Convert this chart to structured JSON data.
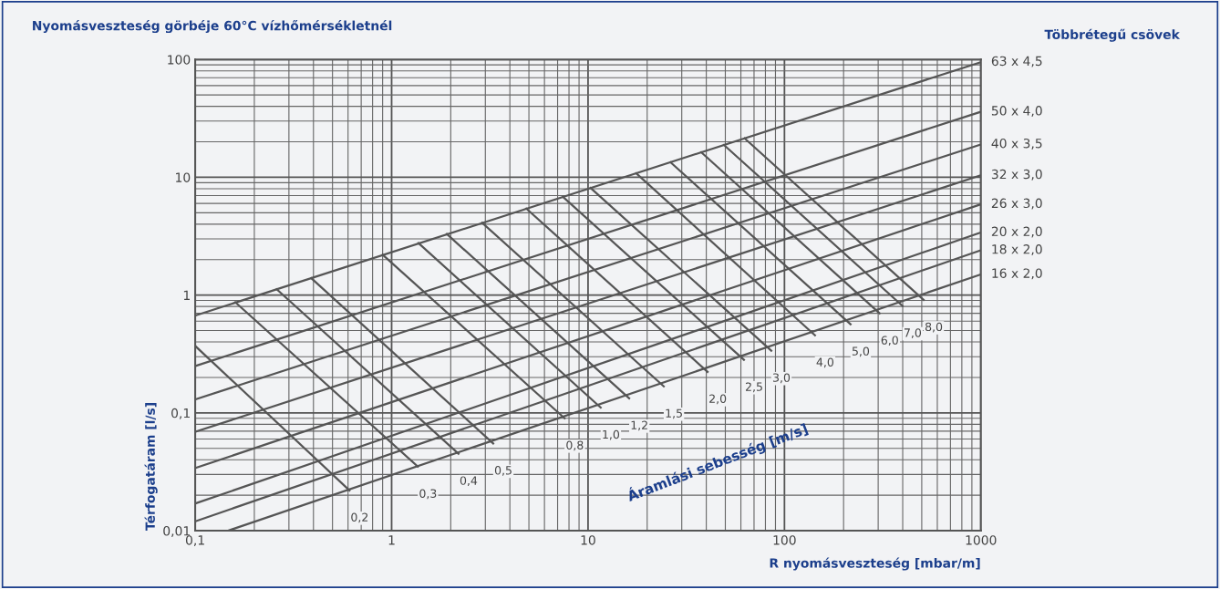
{
  "chart_data": {
    "type": "line",
    "title": "Nyomásveszteség görbéje 60°C vízhőmérsékletnél",
    "subtitle": "Többrétegű csövek",
    "xlabel": "R nyomásveszteség [mbar/m]",
    "ylabel": "Térfogatáram [l/s]",
    "log": "xy",
    "grid": true,
    "marker": "none",
    "line_style": "solid",
    "xlim": [
      0.1,
      1000
    ],
    "ylim": [
      0.01,
      100
    ],
    "xticks": [
      {
        "value": 0.1,
        "label": "0,1"
      },
      1,
      10,
      100,
      1000
    ],
    "yticks": [
      {
        "value": 0.01,
        "label": "0,01"
      },
      {
        "value": 0.1,
        "label": "0,1"
      },
      1,
      10,
      100
    ],
    "annotations": [
      "Áramlási sebesség [m/s]"
    ],
    "series": [
      {
        "name": "63 x 4,5",
        "color": "#555555",
        "x": [
          0.1,
          1000
        ],
        "values": [
          0.67,
          95
        ]
      },
      {
        "name": "50 x 4,0",
        "color": "#555555",
        "x": [
          0.1,
          1000
        ],
        "values": [
          0.25,
          36
        ]
      },
      {
        "name": "40 x 3,5",
        "color": "#555555",
        "x": [
          0.1,
          1000
        ],
        "values": [
          0.13,
          19
        ]
      },
      {
        "name": "32 x 3,0",
        "color": "#555555",
        "x": [
          0.1,
          1000
        ],
        "values": [
          0.069,
          10.4
        ]
      },
      {
        "name": "26 x 3,0",
        "color": "#555555",
        "x": [
          0.1,
          1000
        ],
        "values": [
          0.034,
          5.9
        ]
      },
      {
        "name": "20 x 2,0",
        "color": "#555555",
        "x": [
          0.1,
          1000
        ],
        "values": [
          0.017,
          3.4
        ]
      },
      {
        "name": "18 x 2,0",
        "color": "#555555",
        "x": [
          0.1,
          1000
        ],
        "values": [
          0.012,
          2.4
        ]
      },
      {
        "name": "16 x 2,0",
        "color": "#555555",
        "x": [
          0.147,
          1000
        ],
        "values": [
          0.01,
          1.5
        ]
      },
      {
        "name": "0,2",
        "color": "#555555",
        "x": [
          0.1,
          0.61
        ],
        "values": [
          0.37,
          0.022
        ]
      },
      {
        "name": "0,3",
        "color": "#555555",
        "x": [
          0.16,
          1.36
        ],
        "values": [
          0.87,
          0.035
        ]
      },
      {
        "name": "0,4",
        "color": "#555555",
        "x": [
          0.26,
          2.19
        ],
        "values": [
          1.12,
          0.045
        ]
      },
      {
        "name": "0,5",
        "color": "#555555",
        "x": [
          0.39,
          3.29
        ],
        "values": [
          1.39,
          0.055
        ]
      },
      {
        "name": "0,8",
        "color": "#555555",
        "x": [
          0.9,
          7.6
        ],
        "values": [
          2.2,
          0.09
        ]
      },
      {
        "name": "1,0",
        "color": "#555555",
        "x": [
          1.37,
          11.6
        ],
        "values": [
          2.76,
          0.111
        ]
      },
      {
        "name": "1,2",
        "color": "#555555",
        "x": [
          1.91,
          16.2
        ],
        "values": [
          3.3,
          0.133
        ]
      },
      {
        "name": "1,5",
        "color": "#555555",
        "x": [
          2.89,
          24.3
        ],
        "values": [
          4.11,
          0.168
        ]
      },
      {
        "name": "2,0",
        "color": "#555555",
        "x": [
          4.85,
          40.6
        ],
        "values": [
          5.43,
          0.223
        ]
      },
      {
        "name": "2,5",
        "color": "#555555",
        "x": [
          7.45,
          62.2
        ],
        "values": [
          6.82,
          0.282
        ]
      },
      {
        "name": "3,0",
        "color": "#555555",
        "x": [
          10.3,
          85.7
        ],
        "values": [
          8.13,
          0.337
        ]
      },
      {
        "name": "4,0",
        "color": "#555555",
        "x": [
          17.6,
          143
        ],
        "values": [
          10.8,
          0.456
        ]
      },
      {
        "name": "5,0",
        "color": "#555555",
        "x": [
          26.3,
          217
        ],
        "values": [
          13.4,
          0.565
        ]
      },
      {
        "name": "6,0",
        "color": "#555555",
        "x": [
          37.7,
          305
        ],
        "values": [
          16.3,
          0.7
        ]
      },
      {
        "name": "7,0",
        "color": "#555555",
        "x": [
          49.2,
          399
        ],
        "values": [
          18.8,
          0.81
        ]
      },
      {
        "name": "8,0",
        "color": "#555555",
        "x": [
          62.7,
          511
        ],
        "values": [
          21.4,
          0.91
        ]
      }
    ]
  }
}
